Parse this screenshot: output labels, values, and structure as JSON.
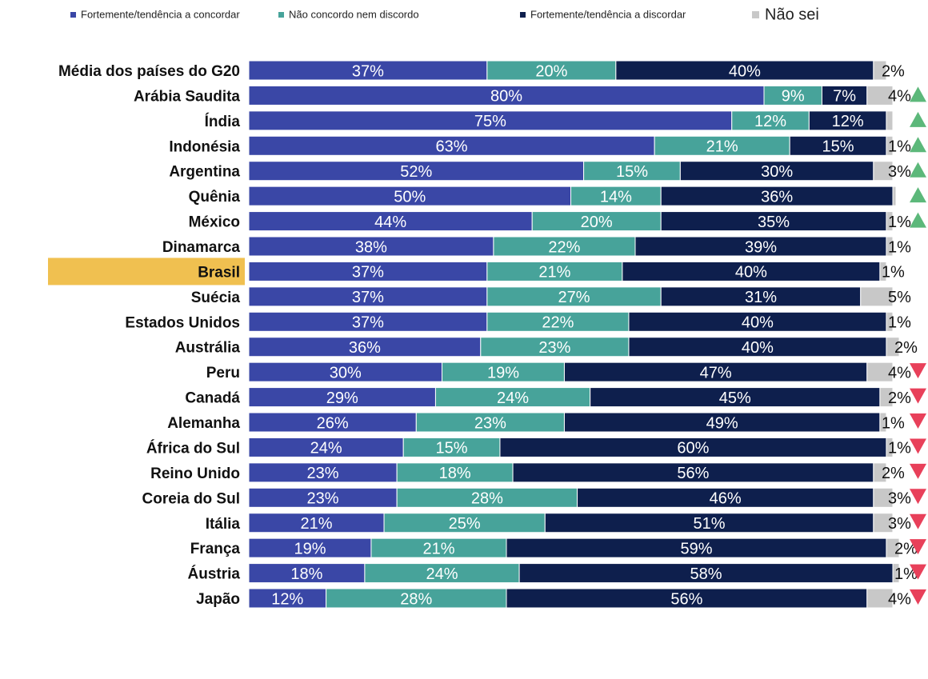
{
  "chart_data": {
    "type": "stacked-bar-horizontal",
    "categories": [
      "Média dos países do G20",
      "Arábia Saudita",
      "Índia",
      "Indonésia",
      "Argentina",
      "Quênia",
      "México",
      "Dinamarca",
      "Brasil",
      "Suécia",
      "Estados Unidos",
      "Austrália",
      "Peru",
      "Canadá",
      "Alemanha",
      "África do Sul",
      "Reino Unido",
      "Coreia do Sul",
      "Itália",
      "França",
      "Áustria",
      "Japão"
    ],
    "series": [
      {
        "name": "Fortemente/tendência a concordar",
        "color": "#3a47a6",
        "values": [
          37,
          80,
          75,
          63,
          52,
          50,
          44,
          38,
          37,
          37,
          37,
          36,
          30,
          29,
          26,
          24,
          23,
          23,
          21,
          19,
          18,
          12
        ],
        "value_labels": [
          "37%",
          "80%",
          "75%",
          "63%",
          "52%",
          "50%",
          "44%",
          "38%",
          "37%",
          "37%",
          "37%",
          "36%",
          "30%",
          "29%",
          "26%",
          "24%",
          "23%",
          "23%",
          "21%",
          "19%",
          "18%",
          "12%"
        ]
      },
      {
        "name": "Não concordo nem discordo",
        "color": "#47a39a",
        "values": [
          20,
          9,
          12,
          21,
          15,
          14,
          20,
          22,
          21,
          27,
          22,
          23,
          19,
          24,
          23,
          15,
          18,
          28,
          25,
          21,
          24,
          28
        ],
        "value_labels": [
          "20%",
          "9%",
          "12%",
          "21%",
          "15%",
          "14%",
          "20%",
          "22%",
          "21%",
          "27%",
          "22%",
          "23%",
          "19%",
          "24%",
          "23%",
          "15%",
          "18%",
          "28%",
          "25%",
          "21%",
          "24%",
          "28%"
        ]
      },
      {
        "name": "Fortemente/tendência a discordar",
        "color": "#0e1f4d",
        "values": [
          40,
          7,
          12,
          15,
          30,
          36,
          35,
          39,
          40,
          31,
          40,
          40,
          47,
          45,
          49,
          60,
          56,
          46,
          51,
          59,
          58,
          56
        ],
        "value_labels": [
          "40%",
          "7%",
          "12%",
          "15%",
          "30%",
          "36%",
          "35%",
          "39%",
          "40%",
          "31%",
          "40%",
          "40%",
          "47%",
          "45%",
          "49%",
          "60%",
          "56%",
          "46%",
          "51%",
          "59%",
          "58%",
          "56%"
        ]
      },
      {
        "name": "Não sei",
        "color": "#c8c8c8",
        "values": [
          2,
          4,
          1,
          1,
          3,
          0.5,
          1,
          1,
          1,
          5,
          1,
          2,
          4,
          2,
          1,
          1,
          2,
          3,
          3,
          2,
          1,
          4
        ],
        "value_labels": [
          "2%",
          "4%",
          null,
          "1%",
          "3%",
          null,
          "1%",
          "1%",
          "1%",
          "5%",
          "1%",
          "2%",
          "4%",
          "2%",
          "1%",
          "1%",
          "2%",
          "3%",
          "3%",
          "2%",
          "1%",
          "4%"
        ]
      }
    ],
    "trend": [
      null,
      "up",
      "up",
      "up",
      "up",
      "up",
      "up",
      null,
      null,
      null,
      null,
      null,
      "down",
      "down",
      "down",
      "down",
      "down",
      "down",
      "down",
      "down",
      "down",
      "down"
    ],
    "highlight": 8,
    "xlim": [
      0,
      100
    ]
  }
}
